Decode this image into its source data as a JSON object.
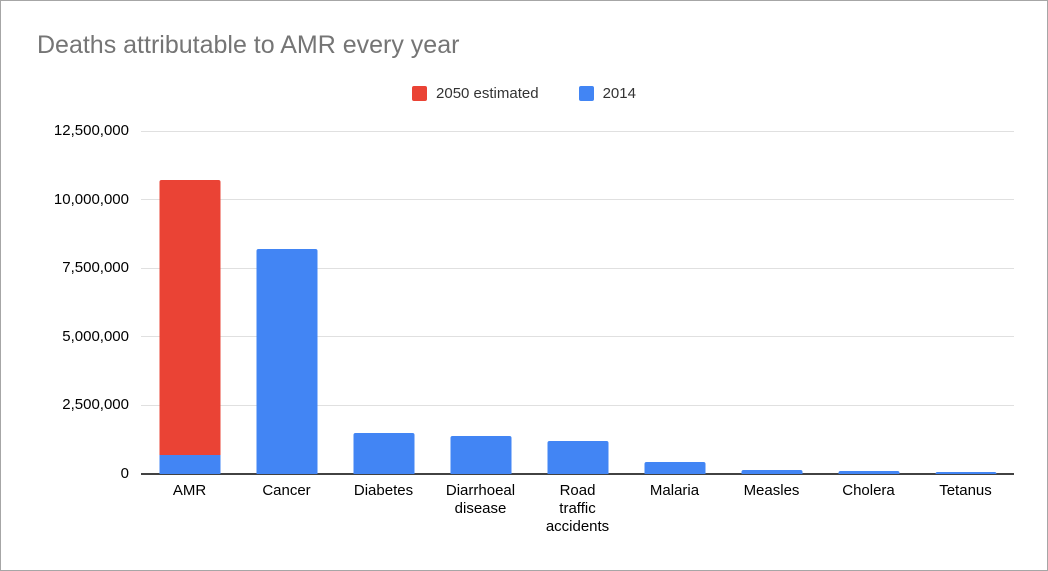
{
  "page": {
    "background": "#ffffff",
    "border_color": "#a6a6a6"
  },
  "chart_data": {
    "type": "bar",
    "stacked": true,
    "title": "Deaths attributable to AMR every year",
    "title_color": "#757575",
    "categories": [
      "AMR",
      "Cancer",
      "Diabetes",
      "Diarrhoeal disease",
      "Road traffic accidents",
      "Malaria",
      "Measles",
      "Cholera",
      "Tetanus"
    ],
    "xtick_labels": [
      "AMR",
      "Cancer",
      "Diabetes",
      "Diarrhoeal\ndisease",
      "Road\ntraffic\naccidents",
      "Malaria",
      "Measles",
      "Cholera",
      "Tetanus"
    ],
    "series": [
      {
        "name": "2050 estimated",
        "color": "#EA4335",
        "values": [
          10000000,
          0,
          0,
          0,
          0,
          0,
          0,
          0,
          0
        ]
      },
      {
        "name": "2014",
        "color": "#4285F4",
        "values": [
          700000,
          8200000,
          1500000,
          1400000,
          1200000,
          430000,
          130000,
          120000,
          60000
        ]
      }
    ],
    "ylim": [
      0,
      12500000
    ],
    "yticks": [
      0,
      2500000,
      5000000,
      7500000,
      10000000,
      12500000
    ],
    "ytick_labels": [
      "0",
      "2,500,000",
      "5,000,000",
      "7,500,000",
      "10,000,000",
      "12,500,000"
    ],
    "grid": true,
    "gridline_color": "#e0e0e0",
    "axis_color": "#424242",
    "legend_position": "top-center",
    "xlabel": "",
    "ylabel": ""
  }
}
